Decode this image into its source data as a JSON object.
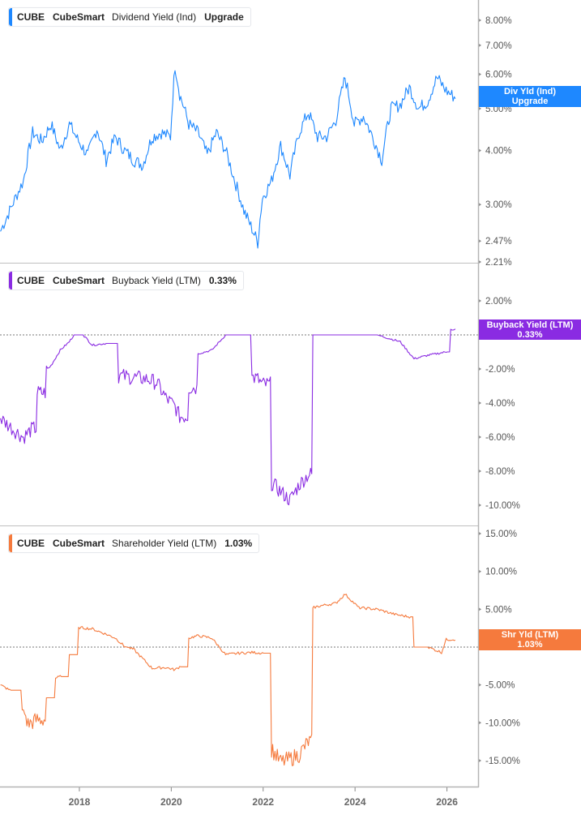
{
  "chart_data": [
    {
      "type": "line",
      "panel": "dividend_yield",
      "title": "CUBE CubeSmart Dividend Yield (Ind)",
      "legend": {
        "ticker": "CUBE",
        "company": "CubeSmart",
        "metric": "Dividend Yield (Ind)",
        "value": "Upgrade"
      },
      "badge": {
        "line1": "Div Yld (Ind)",
        "line2": "Upgrade"
      },
      "color": "#1e88ff",
      "yscale": "log",
      "ylim": [
        2.21,
        8.6
      ],
      "yticks": [
        "8.00%",
        "7.00%",
        "6.00%",
        "5.00%",
        "4.00%",
        "3.00%",
        "2.47%",
        "2.21%"
      ],
      "x": [
        2016.3,
        2016.5,
        2016.8,
        2017.0,
        2017.2,
        2017.4,
        2017.6,
        2017.8,
        2018.0,
        2018.2,
        2018.4,
        2018.6,
        2018.8,
        2019.0,
        2019.2,
        2019.4,
        2019.6,
        2019.8,
        2020.0,
        2020.1,
        2020.2,
        2020.4,
        2020.6,
        2020.8,
        2021.0,
        2021.2,
        2021.4,
        2021.6,
        2021.8,
        2021.9,
        2022.0,
        2022.2,
        2022.4,
        2022.6,
        2022.8,
        2023.0,
        2023.2,
        2023.4,
        2023.6,
        2023.8,
        2024.0,
        2024.2,
        2024.4,
        2024.6,
        2024.8,
        2025.0,
        2025.2,
        2025.4,
        2025.6,
        2025.8,
        2026.0,
        2026.2
      ],
      "values": [
        2.6,
        2.9,
        3.4,
        4.4,
        4.2,
        4.6,
        4.0,
        4.6,
        4.2,
        3.9,
        4.5,
        3.8,
        4.3,
        4.0,
        3.8,
        3.7,
        4.3,
        4.4,
        4.3,
        6.3,
        5.4,
        4.6,
        4.4,
        3.9,
        4.4,
        4.0,
        3.4,
        2.9,
        2.6,
        2.45,
        3.1,
        3.4,
        4.1,
        3.5,
        4.4,
        4.9,
        4.3,
        4.3,
        4.7,
        5.9,
        4.6,
        4.8,
        4.3,
        3.8,
        5.0,
        5.1,
        5.6,
        5.0,
        5.2,
        5.9,
        5.5,
        5.3
      ],
      "last_value": 5.3
    },
    {
      "type": "line",
      "panel": "buyback_yield",
      "title": "CUBE CubeSmart Buyback Yield (LTM)",
      "legend": {
        "ticker": "CUBE",
        "company": "CubeSmart",
        "metric": "Buyback Yield (LTM)",
        "value": "0.33%"
      },
      "badge": {
        "line1": "Buyback Yield (LTM)",
        "line2": "0.33%"
      },
      "color": "#8a2be2",
      "ylim": [
        -10.5,
        3.0
      ],
      "yticks": [
        "2.00%",
        "0.00%",
        "-2.00%",
        "-4.00%",
        "-6.00%",
        "-8.00%",
        "-10.00%"
      ],
      "x": [
        2016.3,
        2016.6,
        2016.8,
        2017.0,
        2017.1,
        2017.3,
        2017.4,
        2017.6,
        2017.8,
        2017.9,
        2018.1,
        2018.3,
        2018.6,
        2018.9,
        2019.2,
        2019.5,
        2019.7,
        2019.9,
        2020.1,
        2020.2,
        2020.4,
        2020.6,
        2020.9,
        2021.2,
        2021.5,
        2021.8,
        2021.9,
        2022.0,
        2022.2,
        2022.4,
        2022.6,
        2022.8,
        2023.0,
        2023.1,
        2023.2,
        2023.6,
        2024.0,
        2024.5,
        2025.0,
        2025.3,
        2025.6,
        2026.0,
        2026.1,
        2026.2
      ],
      "values": [
        -4.9,
        -5.6,
        -6.0,
        -5.5,
        -3.4,
        -2.1,
        -1.8,
        -0.9,
        -0.4,
        0.0,
        0.0,
        -0.6,
        -0.5,
        -2.4,
        -2.5,
        -2.6,
        -2.8,
        -3.7,
        -4.2,
        -4.8,
        -3.1,
        -1.1,
        -0.9,
        0.0,
        0.0,
        -2.5,
        -2.6,
        -2.9,
        -8.7,
        -9.2,
        -9.7,
        -8.8,
        -8.2,
        0.0,
        0.0,
        0.0,
        0.0,
        0.0,
        -0.4,
        -1.4,
        -1.2,
        -1.0,
        0.33,
        0.33
      ],
      "last_value": 0.33,
      "reference_line": 0
    },
    {
      "type": "line",
      "panel": "shareholder_yield",
      "title": "CUBE CubeSmart Shareholder Yield (LTM)",
      "legend": {
        "ticker": "CUBE",
        "company": "CubeSmart",
        "metric": "Shareholder Yield (LTM)",
        "value": "1.03%"
      },
      "badge": {
        "line1": "Shr Yld (LTM)",
        "line2": "1.03%"
      },
      "color": "#f57a3d",
      "ylim": [
        -18,
        16
      ],
      "yticks": [
        "15.00%",
        "10.00%",
        "5.00%",
        "0.00%",
        "-5.00%",
        "-10.00%",
        "-15.00%"
      ],
      "x": [
        2016.3,
        2016.5,
        2016.8,
        2016.9,
        2017.1,
        2017.3,
        2017.5,
        2017.6,
        2017.8,
        2018.0,
        2018.3,
        2018.6,
        2018.8,
        2019.0,
        2019.2,
        2019.6,
        2019.9,
        2020.1,
        2020.2,
        2020.4,
        2020.6,
        2020.9,
        2021.2,
        2021.5,
        2021.8,
        2022.0,
        2022.2,
        2022.4,
        2022.6,
        2022.8,
        2023.0,
        2023.1,
        2023.3,
        2023.6,
        2023.8,
        2024.1,
        2024.5,
        2024.9,
        2025.2,
        2025.3,
        2025.6,
        2025.9,
        2026.0,
        2026.2
      ],
      "values": [
        -5.0,
        -5.7,
        -8.3,
        -10.2,
        -9.6,
        -6.7,
        -4.1,
        -3.9,
        -1.0,
        2.6,
        2.4,
        1.7,
        1.2,
        0.1,
        -0.3,
        -2.8,
        -2.7,
        -3.0,
        -2.6,
        1.2,
        1.5,
        1.2,
        -1.0,
        -0.8,
        -0.7,
        -0.8,
        -13.5,
        -15.2,
        -14.8,
        -14.2,
        -12.5,
        5.2,
        5.5,
        5.8,
        7.0,
        5.2,
        5.0,
        4.3,
        4.0,
        0.0,
        0.0,
        -0.7,
        1.0,
        1.03
      ],
      "last_value": 1.03,
      "reference_line": 0
    }
  ],
  "x_axis": {
    "ticks": [
      "2018",
      "2020",
      "2022",
      "2024",
      "2026"
    ],
    "range": [
      2016.29,
      2026.7
    ]
  }
}
